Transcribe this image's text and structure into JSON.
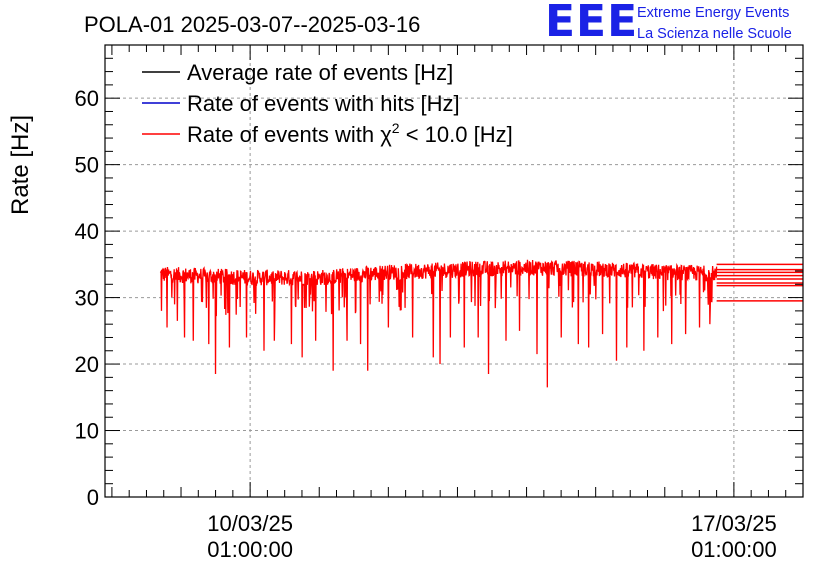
{
  "chart_data": {
    "type": "line",
    "title": "POLA-01 2025-03-07--2025-03-16",
    "ylabel": "Rate [Hz]",
    "xlabel": "",
    "ylim": [
      0,
      68
    ],
    "xlim": [
      -2.1,
      8.0
    ],
    "grid": true,
    "x_axis_unit": "days since 10/03/25 01:00:00",
    "y_ticks": [
      0,
      10,
      20,
      30,
      40,
      50,
      60
    ],
    "x_ticks": [
      {
        "value": 0,
        "date": "10/03/25",
        "time": "01:00:00"
      },
      {
        "value": 7,
        "date": "17/03/25",
        "time": "01:00:00"
      }
    ],
    "legend": [
      {
        "label_main": "Average rate of events [Hz]",
        "color": "#000000"
      },
      {
        "label_main": "Rate of events with hits [Hz]",
        "color": "#0000cc"
      },
      {
        "label_main": "Rate of events with ",
        "chi": "χ",
        "sup": "2",
        "label_after": " < 10.0 [Hz]",
        "color": "#ff0000"
      }
    ],
    "legend_position": "top-left",
    "series": [
      {
        "name": "Rate of events with χ2 < 10.0 [Hz]",
        "color": "#ff0000",
        "x_start": -1.3,
        "x_end": 6.75,
        "baseline_start": 33.2,
        "baseline_end": 33.6,
        "baseline_trend": [
          [
            -1.3,
            33.5
          ],
          [
            0.0,
            33.0
          ],
          [
            1.0,
            33.0
          ],
          [
            2.0,
            33.8
          ],
          [
            3.0,
            34.2
          ],
          [
            4.0,
            34.5
          ],
          [
            5.0,
            34.3
          ],
          [
            6.0,
            33.8
          ],
          [
            6.75,
            33.6
          ]
        ],
        "noise_amplitude": 1.2,
        "dips": [
          [
            -1.28,
            28.0
          ],
          [
            -1.2,
            25.5
          ],
          [
            -1.05,
            26.5
          ],
          [
            -0.95,
            24.0
          ],
          [
            -0.82,
            23.5
          ],
          [
            -0.6,
            23.0
          ],
          [
            -0.5,
            18.5
          ],
          [
            -0.3,
            22.5
          ],
          [
            -0.05,
            24.0
          ],
          [
            0.2,
            22.0
          ],
          [
            0.35,
            23.5
          ],
          [
            0.6,
            23.0
          ],
          [
            0.75,
            21.0
          ],
          [
            0.95,
            23.5
          ],
          [
            1.2,
            19.0
          ],
          [
            1.4,
            23.5
          ],
          [
            1.6,
            23.0
          ],
          [
            1.7,
            19.0
          ],
          [
            2.0,
            25.5
          ],
          [
            2.35,
            24.0
          ],
          [
            2.65,
            21.0
          ],
          [
            2.75,
            20.0
          ],
          [
            2.9,
            24.0
          ],
          [
            3.1,
            22.5
          ],
          [
            3.3,
            24.0
          ],
          [
            3.45,
            18.5
          ],
          [
            3.7,
            23.5
          ],
          [
            3.9,
            25.0
          ],
          [
            4.15,
            21.5
          ],
          [
            4.3,
            16.5
          ],
          [
            4.5,
            24.0
          ],
          [
            4.75,
            23.0
          ],
          [
            4.9,
            22.5
          ],
          [
            5.1,
            24.5
          ],
          [
            5.3,
            20.5
          ],
          [
            5.45,
            22.5
          ],
          [
            5.7,
            22.0
          ],
          [
            5.9,
            24.0
          ],
          [
            6.1,
            23.0
          ],
          [
            6.3,
            24.5
          ],
          [
            6.5,
            25.5
          ],
          [
            6.65,
            26.0
          ]
        ],
        "flat_tail": {
          "x_start": 6.75,
          "x_end": 8.0,
          "levels": [
            29.5,
            31.8,
            32.2,
            32.8,
            33.3,
            33.8,
            34.2,
            35.0
          ]
        }
      }
    ]
  },
  "logo": {
    "mark": "EEE",
    "line1": "Extreme Energy Events",
    "line2": "La Scienza nelle Scuole",
    "color": "#1a22e6"
  }
}
